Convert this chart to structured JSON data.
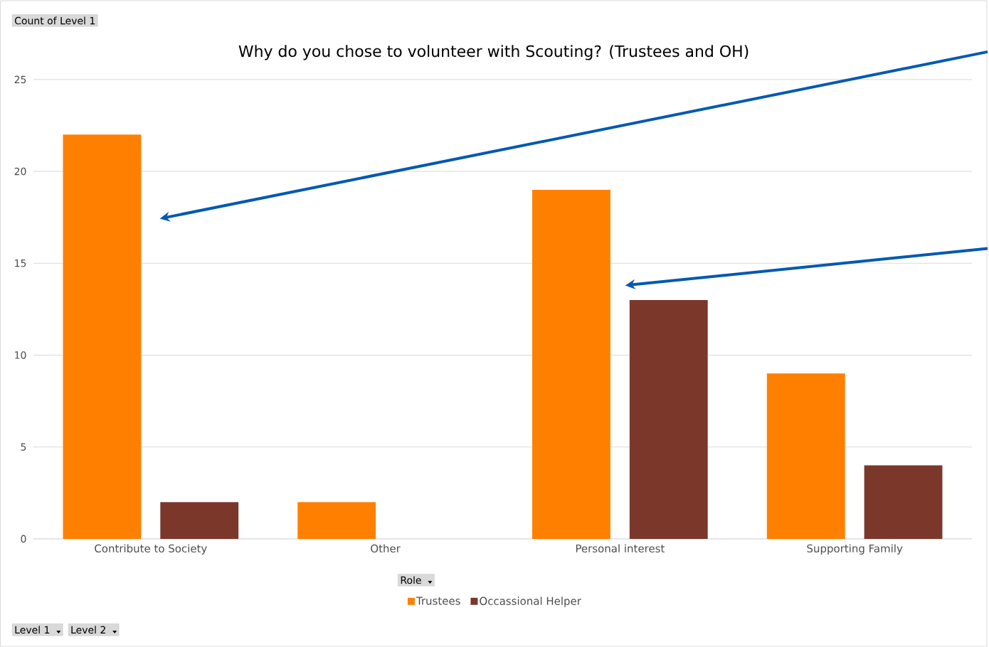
{
  "chart_data": {
    "type": "bar",
    "title": "Why do you chose to volunteer with Scouting? (Trustees and OH)",
    "legend_title": "Role",
    "categories": [
      "Contribute to Society",
      "Other",
      "Personal interest",
      "Supporting Family"
    ],
    "series": [
      {
        "name": "Trustees",
        "color": "#ff8000",
        "values": [
          22,
          2,
          19,
          9
        ]
      },
      {
        "name": "Occassional Helper",
        "color": "#7b382a",
        "values": [
          2,
          null,
          13,
          4
        ]
      }
    ],
    "ylim": [
      0,
      25
    ],
    "yticks": [
      0,
      5,
      10,
      15,
      20,
      25
    ],
    "grid": "y",
    "legend": "bottom",
    "annotations": [
      "Count of Level 1",
      "Level 1",
      "Level 2"
    ]
  }
}
